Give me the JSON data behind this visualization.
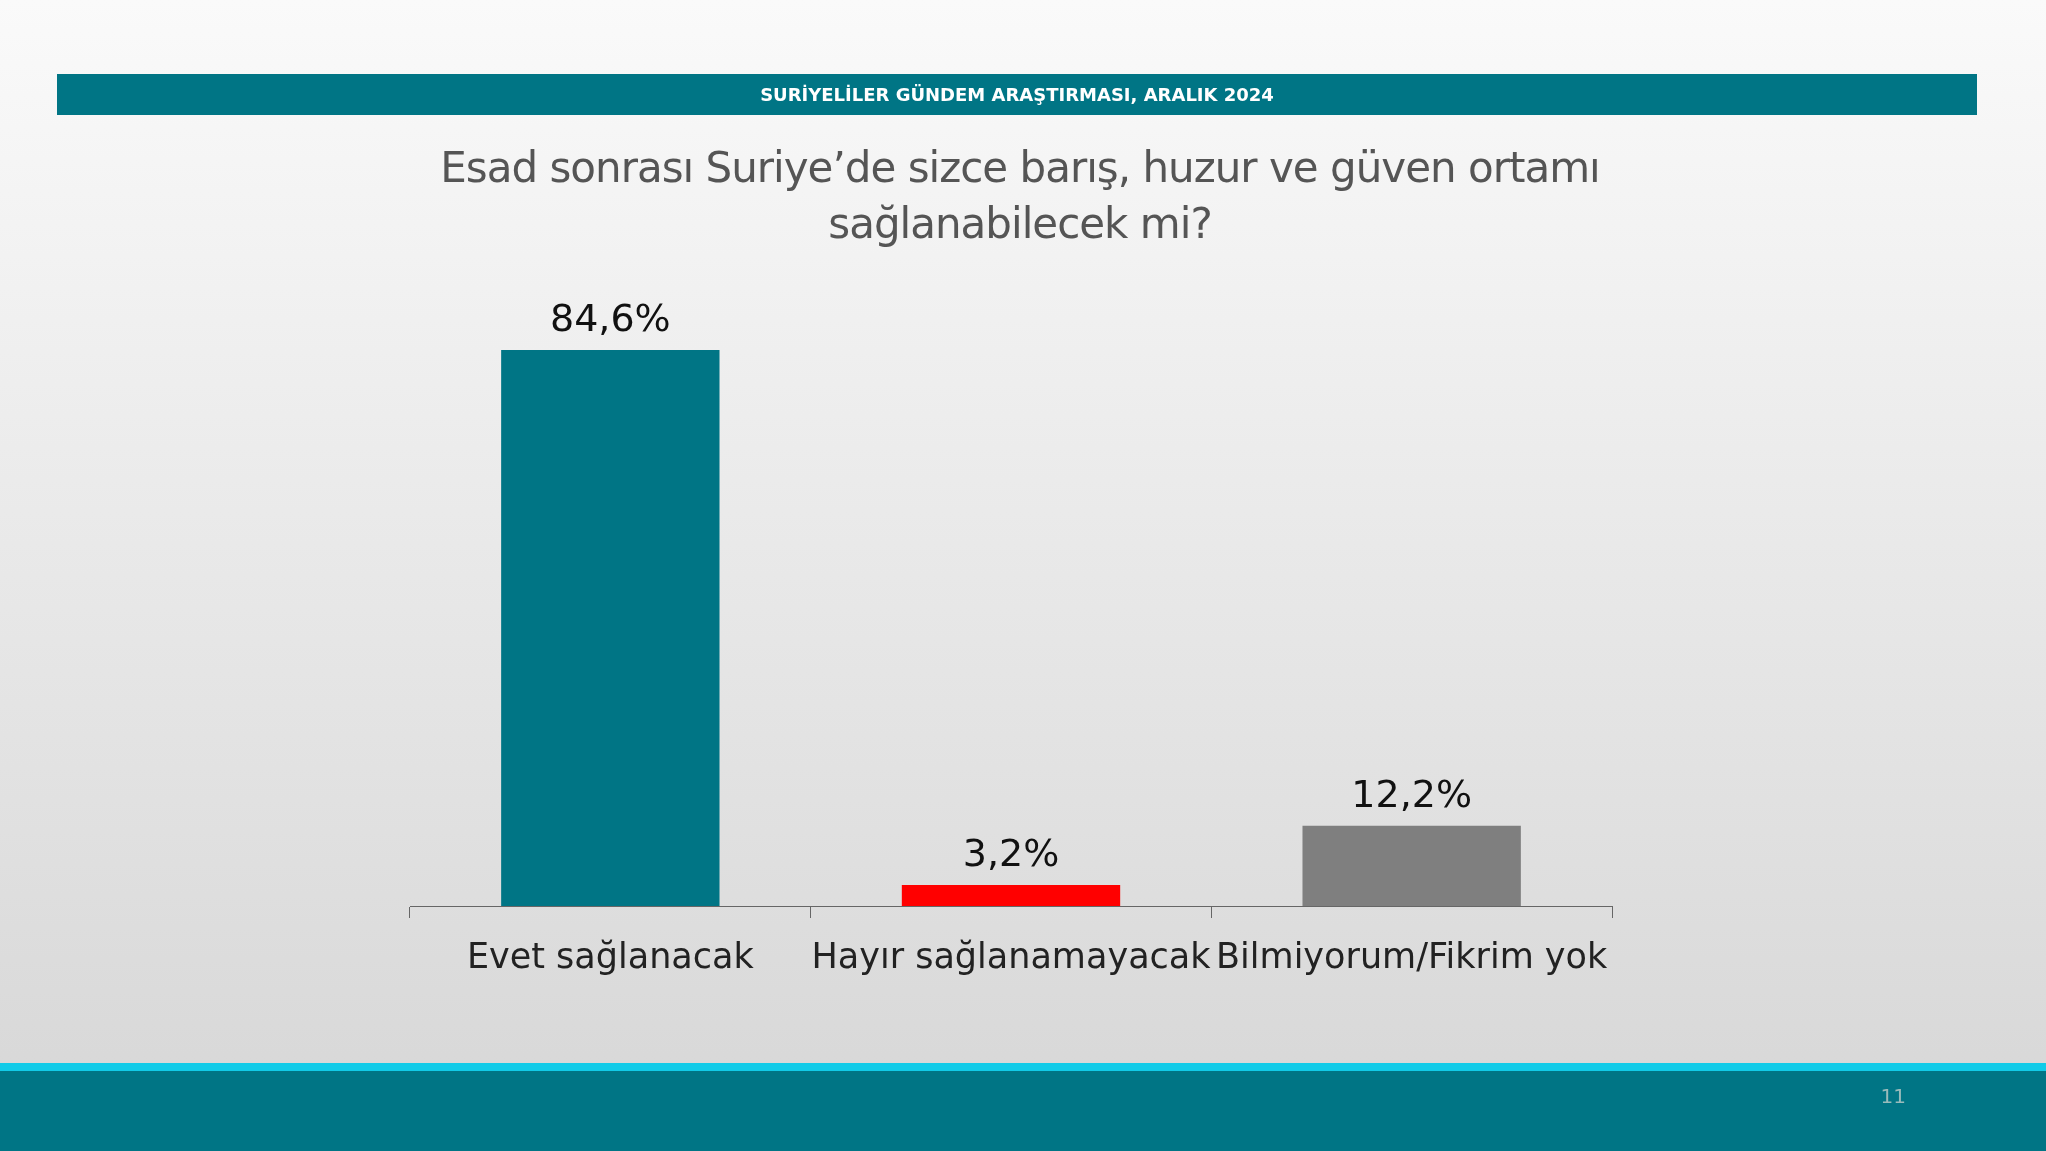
{
  "chart_data": {
    "type": "bar",
    "subtitle": "SURİYELİLER GÜNDEM ARAŞTIRMASI, ARALIK 2024",
    "title": "Esad sonrası Suriye’de sizce barış, huzur ve güven ortamı sağlanabilecek mi?",
    "categories": [
      "Evet sağlanacak",
      "Hayır sağlanamayacak",
      "Bilmiyorum/Fikrim yok"
    ],
    "values": [
      84.6,
      3.2,
      12.2
    ],
    "colors": [
      "#007585",
      "#ff0000",
      "#7f7f7f"
    ],
    "value_labels": [
      "84,6%",
      "3,2%",
      "12,2%"
    ],
    "tick_labels": "x",
    "grid": false,
    "legend": false,
    "annotations": [
      "11"
    ]
  }
}
